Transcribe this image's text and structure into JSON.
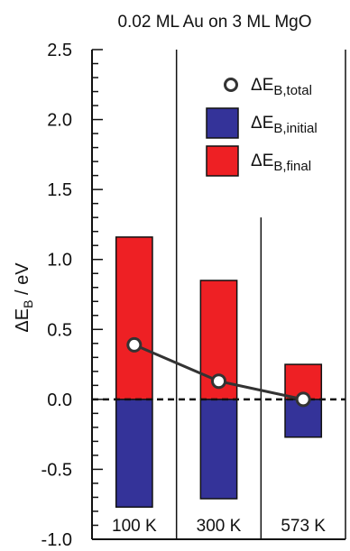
{
  "chart_data": {
    "type": "bar",
    "title": "0.02 ML Au on 3 ML MgO",
    "ylabel": {
      "main": "ΔE",
      "sub": "B",
      "unit": " / eV"
    },
    "ylim": [
      -1.0,
      2.5
    ],
    "yticks": [
      "-1.0",
      "-0.5",
      "0.0",
      "0.5",
      "1.0",
      "1.5",
      "2.0",
      "2.5"
    ],
    "ytick_values": [
      -1.0,
      -0.5,
      0.0,
      0.5,
      1.0,
      1.5,
      2.0,
      2.5
    ],
    "minor_tick_step": 0.1,
    "categories": [
      "100 K",
      "300 K",
      "573 K"
    ],
    "zero_line": "dashed",
    "grid": false,
    "legend_position": "top-right",
    "series": [
      {
        "name": "ΔE",
        "sub": "B,initial",
        "kind": "bar",
        "color": "#343399",
        "values": [
          -0.77,
          -0.71,
          -0.27
        ]
      },
      {
        "name": "ΔE",
        "sub": "B,final",
        "kind": "bar",
        "color": "#ee2024",
        "values": [
          1.16,
          0.85,
          0.25
        ]
      },
      {
        "name": "ΔE",
        "sub": "B,total",
        "kind": "line-marker",
        "color": "#333333",
        "values": [
          0.39,
          0.13,
          0.0
        ]
      }
    ]
  }
}
